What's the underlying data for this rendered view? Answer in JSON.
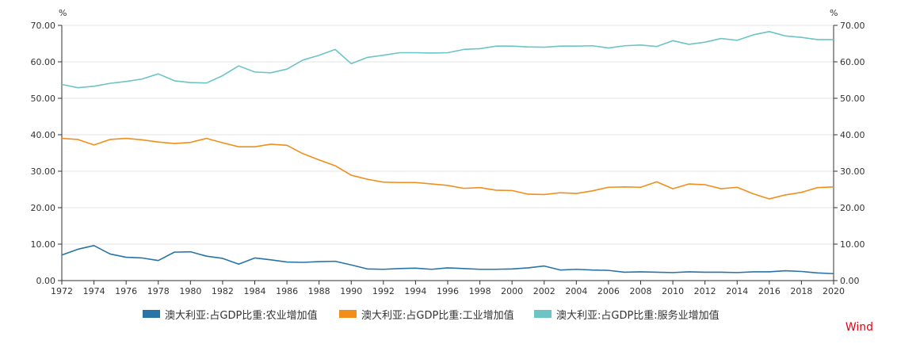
{
  "chart_data": {
    "type": "line",
    "title": "",
    "y_unit_left": "%",
    "y_unit_right": "%",
    "ylim": [
      0,
      70
    ],
    "yticks": [
      "0.00",
      "10.00",
      "20.00",
      "30.00",
      "40.00",
      "50.00",
      "60.00",
      "70.00"
    ],
    "xlim": [
      1972,
      2020
    ],
    "xticks": [
      "1972",
      "1974",
      "1976",
      "1978",
      "1980",
      "1982",
      "1984",
      "1986",
      "1988",
      "1990",
      "1992",
      "1994",
      "1996",
      "1998",
      "2000",
      "2002",
      "2004",
      "2006",
      "2008",
      "2010",
      "2012",
      "2014",
      "2016",
      "2018",
      "2020"
    ],
    "x": [
      1972,
      1973,
      1974,
      1975,
      1976,
      1977,
      1978,
      1979,
      1980,
      1981,
      1982,
      1983,
      1984,
      1985,
      1986,
      1987,
      1988,
      1989,
      1990,
      1991,
      1992,
      1993,
      1994,
      1995,
      1996,
      1997,
      1998,
      1999,
      2000,
      2001,
      2002,
      2003,
      2004,
      2005,
      2006,
      2007,
      2008,
      2009,
      2010,
      2011,
      2012,
      2013,
      2014,
      2015,
      2016,
      2017,
      2018,
      2019,
      2020
    ],
    "series": [
      {
        "name": "澳大利亚:占GDP比重:农业增加值",
        "color": "#2874a6",
        "values": [
          7.0,
          8.6,
          9.6,
          7.3,
          6.4,
          6.2,
          5.5,
          7.8,
          7.9,
          6.7,
          6.1,
          4.5,
          6.2,
          5.7,
          5.1,
          5.0,
          5.2,
          5.3,
          4.3,
          3.2,
          3.1,
          3.3,
          3.4,
          3.1,
          3.5,
          3.3,
          3.1,
          3.1,
          3.2,
          3.5,
          4.0,
          2.9,
          3.1,
          2.9,
          2.8,
          2.3,
          2.4,
          2.3,
          2.2,
          2.4,
          2.3,
          2.3,
          2.2,
          2.4,
          2.4,
          2.7,
          2.5,
          2.1,
          1.9
        ]
      },
      {
        "name": "澳大利亚:占GDP比重:工业增加值",
        "color": "#f28e1c",
        "values": [
          39.0,
          38.7,
          37.2,
          38.7,
          39.0,
          38.6,
          38.0,
          37.6,
          37.9,
          39.0,
          37.8,
          36.7,
          36.7,
          37.4,
          37.1,
          34.8,
          33.1,
          31.5,
          28.9,
          27.8,
          27.0,
          26.9,
          26.9,
          26.5,
          26.1,
          25.3,
          25.5,
          24.8,
          24.7,
          23.7,
          23.6,
          24.1,
          23.9,
          24.6,
          25.6,
          25.7,
          25.6,
          27.1,
          25.2,
          26.5,
          26.3,
          25.2,
          25.6,
          23.8,
          22.4,
          23.5,
          24.2,
          25.5,
          25.7
        ]
      },
      {
        "name": "澳大利亚:占GDP比重:服务业增加值",
        "color": "#6cc4c6",
        "values": [
          53.8,
          52.9,
          53.3,
          54.1,
          54.6,
          55.3,
          56.7,
          54.8,
          54.3,
          54.2,
          56.2,
          58.9,
          57.2,
          57.0,
          58.0,
          60.5,
          61.8,
          63.4,
          59.5,
          61.2,
          61.8,
          62.5,
          62.5,
          62.4,
          62.5,
          63.4,
          63.6,
          64.3,
          64.3,
          64.1,
          64.0,
          64.3,
          64.3,
          64.4,
          63.8,
          64.4,
          64.6,
          64.2,
          65.8,
          64.8,
          65.4,
          66.4,
          65.9,
          67.4,
          68.3,
          67.1,
          66.7,
          66.1,
          66.1
        ]
      }
    ],
    "legend_position": "bottom"
  },
  "watermark": "Wind"
}
